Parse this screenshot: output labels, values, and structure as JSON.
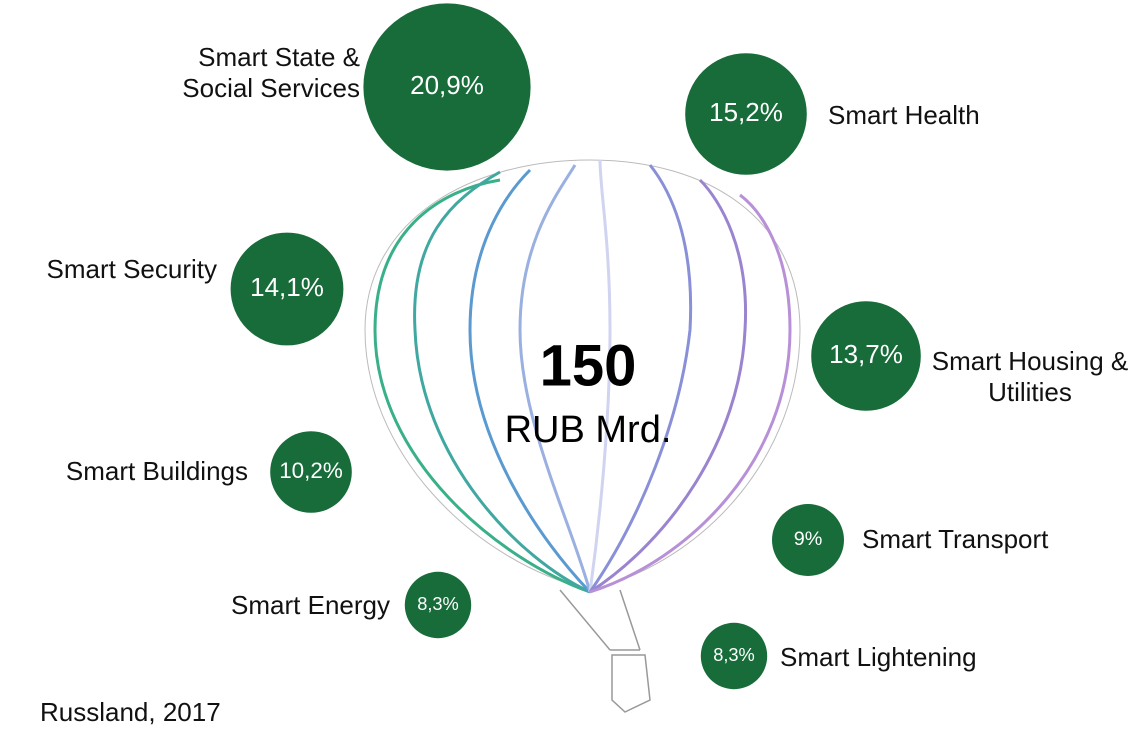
{
  "chart_data": {
    "type": "bubble",
    "categories": [
      "Smart State & Social Services",
      "Smart Health",
      "Smart Security",
      "Smart Housing & Utilities",
      "Smart Buildings",
      "Smart Transport",
      "Smart Energy",
      "Smart Lightening"
    ],
    "values": [
      20.9,
      15.2,
      14.1,
      13.7,
      10.2,
      9,
      8.3,
      8.3
    ],
    "value_labels": [
      "20,9%",
      "15,2%",
      "14,1%",
      "13,7%",
      "10,2%",
      "9%",
      "8,3%",
      "8,3%"
    ],
    "color": "#176c3a",
    "total": 150,
    "total_unit": "RUB Mrd.",
    "source": "Russland, 2017"
  }
}
